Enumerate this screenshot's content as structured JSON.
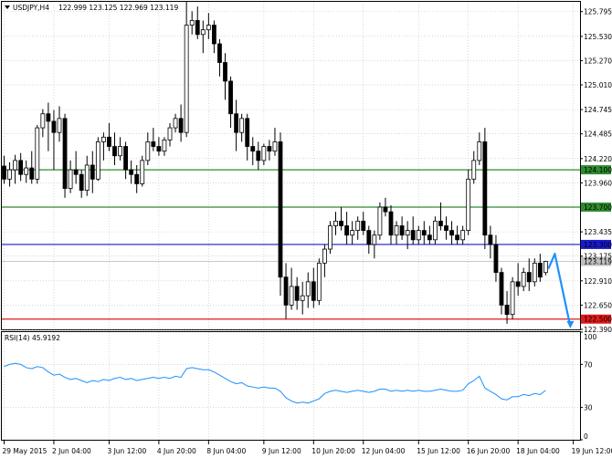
{
  "header": {
    "title": "USDJPY,H4",
    "ohlc": "122.999 123.125 122.969 123.119"
  },
  "colors": {
    "candle": "#000000",
    "bull_fill": "#ffffff",
    "bear_fill": "#000000",
    "grid": "#c0c0c0",
    "level_green": "#2e8b2e",
    "level_blue": "#1a1acc",
    "level_red": "#e11a1a",
    "current_price_bg": "#c0c0c0",
    "arrow": "#1e90ff",
    "rsi_line": "#1e90ff"
  },
  "chart_data": [
    {
      "type": "candlestick",
      "title": "USDJPY,H4",
      "ylim": [
        122.39,
        125.9
      ],
      "ticks": [
        "125.795",
        "125.530",
        "125.270",
        "125.010",
        "124.745",
        "124.485",
        "124.220",
        "123.960",
        "123.435",
        "123.175",
        "122.910",
        "122.650",
        "122.390"
      ],
      "levels": [
        {
          "value": 124.1,
          "label": "124.100",
          "color": "#2e8b2e"
        },
        {
          "value": 123.7,
          "label": "123.700",
          "color": "#2e8b2e"
        },
        {
          "value": 123.3,
          "label": "123.300",
          "color": "#1a1acc"
        },
        {
          "value": 122.5,
          "label": "122.500",
          "color": "#e11a1a"
        }
      ],
      "current_price": {
        "value": 123.119,
        "label": "123.119"
      },
      "x_labels": [
        "29 May 2015",
        "2 Jun 04:00",
        "3 Jun 12:00",
        "4 Jun 20:00",
        "8 Jun 04:00",
        "9 Jun 12:00",
        "10 Jun 20:00",
        "12 Jun 04:00",
        "15 Jun 12:00",
        "16 Jun 20:00",
        "18 Jun 04:00",
        "19 Jun 12:00"
      ],
      "x_label_bars": [
        0,
        9,
        19,
        28,
        37,
        47,
        56,
        65,
        75,
        84,
        93,
        103
      ],
      "candles": [
        [
          124.14,
          124.25,
          123.95,
          124.0
        ],
        [
          124.0,
          124.18,
          123.92,
          124.1
        ],
        [
          124.1,
          124.26,
          123.95,
          124.2
        ],
        [
          124.2,
          124.28,
          123.98,
          124.05
        ],
        [
          124.05,
          124.2,
          123.96,
          124.12
        ],
        [
          124.12,
          124.3,
          123.95,
          124.0
        ],
        [
          124.0,
          124.58,
          123.95,
          124.55
        ],
        [
          124.55,
          124.75,
          124.45,
          124.7
        ],
        [
          124.7,
          124.82,
          124.3,
          124.62
        ],
        [
          124.62,
          124.74,
          124.1,
          124.5
        ],
        [
          124.5,
          124.78,
          124.4,
          124.65
        ],
        [
          124.65,
          124.7,
          123.8,
          123.9
        ],
        [
          123.9,
          124.2,
          123.85,
          124.1
        ],
        [
          124.1,
          124.3,
          123.95,
          124.05
        ],
        [
          124.05,
          124.1,
          123.8,
          123.88
        ],
        [
          123.88,
          124.25,
          123.82,
          124.15
        ],
        [
          124.15,
          124.3,
          123.85,
          124.0
        ],
        [
          124.0,
          124.45,
          123.98,
          124.4
        ],
        [
          124.4,
          124.5,
          124.2,
          124.45
        ],
        [
          124.45,
          124.6,
          124.3,
          124.35
        ],
        [
          124.35,
          124.5,
          124.15,
          124.25
        ],
        [
          124.25,
          124.45,
          124.2,
          124.35
        ],
        [
          124.35,
          124.4,
          124.0,
          124.1
        ],
        [
          124.1,
          124.2,
          123.95,
          124.05
        ],
        [
          124.05,
          124.15,
          123.85,
          123.95
        ],
        [
          123.95,
          124.25,
          123.92,
          124.2
        ],
        [
          124.2,
          124.5,
          124.15,
          124.4
        ],
        [
          124.4,
          124.55,
          124.3,
          124.35
        ],
        [
          124.35,
          124.45,
          124.25,
          124.3
        ],
        [
          124.3,
          124.45,
          124.25,
          124.42
        ],
        [
          124.42,
          124.6,
          124.35,
          124.55
        ],
        [
          124.55,
          124.7,
          124.5,
          124.65
        ],
        [
          124.65,
          124.8,
          124.4,
          124.5
        ],
        [
          124.5,
          125.9,
          124.45,
          125.65
        ],
        [
          125.65,
          125.8,
          125.55,
          125.7
        ],
        [
          125.7,
          125.85,
          125.5,
          125.55
        ],
        [
          125.55,
          125.7,
          125.35,
          125.6
        ],
        [
          125.6,
          125.78,
          125.5,
          125.65
        ],
        [
          125.65,
          125.7,
          125.35,
          125.45
        ],
        [
          125.45,
          125.5,
          125.1,
          125.25
        ],
        [
          125.25,
          125.35,
          124.85,
          125.05
        ],
        [
          125.05,
          125.1,
          124.55,
          124.7
        ],
        [
          124.7,
          124.85,
          124.3,
          124.5
        ],
        [
          124.5,
          124.7,
          124.4,
          124.65
        ],
        [
          124.65,
          124.7,
          124.2,
          124.35
        ],
        [
          124.35,
          124.45,
          124.15,
          124.3
        ],
        [
          124.3,
          124.4,
          124.1,
          124.2
        ],
        [
          124.2,
          124.38,
          124.15,
          124.35
        ],
        [
          124.35,
          124.42,
          124.2,
          124.3
        ],
        [
          124.3,
          124.55,
          124.25,
          124.4
        ],
        [
          124.4,
          124.5,
          122.75,
          122.95
        ],
        [
          122.95,
          123.1,
          122.5,
          122.65
        ],
        [
          122.65,
          123.05,
          122.6,
          122.85
        ],
        [
          122.85,
          122.95,
          122.6,
          122.7
        ],
        [
          122.7,
          122.9,
          122.55,
          122.75
        ],
        [
          122.75,
          123.0,
          122.62,
          122.9
        ],
        [
          122.9,
          123.05,
          122.62,
          122.7
        ],
        [
          122.7,
          123.15,
          122.65,
          123.1
        ],
        [
          123.1,
          123.3,
          122.95,
          123.25
        ],
        [
          123.25,
          123.55,
          123.2,
          123.5
        ],
        [
          123.5,
          123.65,
          123.4,
          123.55
        ],
        [
          123.55,
          123.7,
          123.45,
          123.5
        ],
        [
          123.5,
          123.65,
          123.3,
          123.4
        ],
        [
          123.4,
          123.55,
          123.3,
          123.45
        ],
        [
          123.45,
          123.6,
          123.35,
          123.55
        ],
        [
          123.55,
          123.65,
          123.4,
          123.45
        ],
        [
          123.45,
          123.5,
          123.2,
          123.3
        ],
        [
          123.3,
          123.45,
          123.15,
          123.4
        ],
        [
          123.4,
          123.75,
          123.35,
          123.7
        ],
        [
          123.7,
          123.8,
          123.6,
          123.65
        ],
        [
          123.65,
          123.72,
          123.3,
          123.4
        ],
        [
          123.4,
          123.55,
          123.3,
          123.5
        ],
        [
          123.5,
          123.6,
          123.35,
          123.4
        ],
        [
          123.4,
          123.55,
          123.25,
          123.45
        ],
        [
          123.45,
          123.6,
          123.3,
          123.35
        ],
        [
          123.35,
          123.5,
          123.3,
          123.45
        ],
        [
          123.45,
          123.55,
          123.3,
          123.4
        ],
        [
          123.4,
          123.5,
          123.3,
          123.35
        ],
        [
          123.35,
          123.6,
          123.3,
          123.55
        ],
        [
          123.55,
          123.75,
          123.45,
          123.5
        ],
        [
          123.5,
          123.6,
          123.35,
          123.45
        ],
        [
          123.45,
          123.55,
          123.3,
          123.4
        ],
        [
          123.4,
          123.5,
          123.3,
          123.35
        ],
        [
          123.35,
          123.5,
          123.3,
          123.45
        ],
        [
          123.45,
          124.1,
          123.4,
          124.0
        ],
        [
          124.0,
          124.3,
          123.95,
          124.2
        ],
        [
          124.2,
          124.5,
          124.15,
          124.4
        ],
        [
          124.4,
          124.55,
          123.25,
          123.4
        ],
        [
          123.4,
          123.5,
          123.15,
          123.3
        ],
        [
          123.3,
          123.4,
          122.9,
          123.0
        ],
        [
          123.0,
          123.05,
          122.55,
          122.65
        ],
        [
          122.65,
          122.8,
          122.45,
          122.55
        ],
        [
          122.55,
          122.95,
          122.5,
          122.9
        ],
        [
          122.9,
          123.1,
          122.75,
          122.85
        ],
        [
          122.85,
          123.05,
          122.8,
          123.0
        ],
        [
          123.0,
          123.15,
          122.8,
          122.9
        ],
        [
          122.9,
          123.15,
          122.85,
          123.1
        ],
        [
          123.1,
          123.2,
          122.9,
          122.95
        ],
        [
          122.999,
          123.125,
          122.969,
          123.119
        ]
      ]
    },
    {
      "type": "line",
      "title": "RSI(14) 45.9192",
      "name": "RSI(14)",
      "ylim": [
        0,
        100
      ],
      "ticks": [
        "100",
        "70",
        "30",
        "0"
      ],
      "values": [
        68,
        70,
        71,
        70,
        67,
        66,
        68,
        67,
        63,
        60,
        61,
        58,
        56,
        57,
        55,
        53,
        55,
        54,
        56,
        55,
        57,
        58,
        56,
        57,
        55,
        56,
        57,
        58,
        57,
        58,
        57,
        59,
        58,
        66,
        67,
        66,
        65,
        65,
        63,
        60,
        57,
        54,
        52,
        53,
        50,
        49,
        48,
        49,
        48,
        48,
        45,
        39,
        36,
        34,
        35,
        34,
        36,
        38,
        43,
        45,
        46,
        45,
        44,
        45,
        46,
        45,
        44,
        45,
        47,
        47,
        45,
        46,
        45,
        46,
        45,
        46,
        45,
        45,
        46,
        47,
        46,
        45,
        45,
        46,
        52,
        55,
        59,
        48,
        45,
        42,
        38,
        37,
        40,
        40,
        42,
        41,
        43,
        42,
        45.9
      ]
    }
  ]
}
